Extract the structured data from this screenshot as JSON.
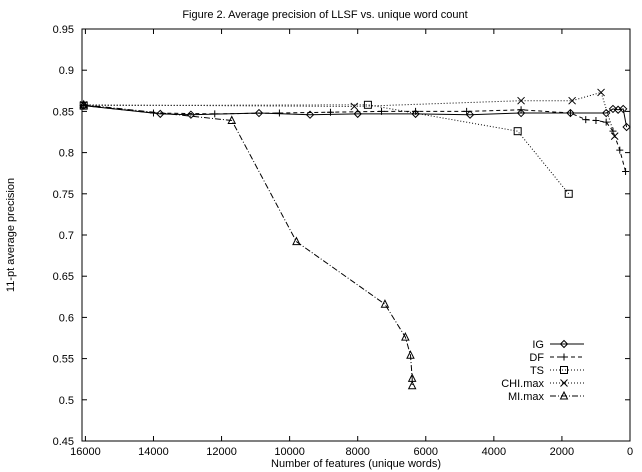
{
  "chart_data": {
    "type": "line",
    "title": "Figure 2. Average precision of LLSF vs. unique word count",
    "xlabel": "Number of features (unique words)",
    "ylabel": "11-pt average precision",
    "xlim": [
      16100,
      0
    ],
    "ylim": [
      0.45,
      0.95
    ],
    "x_reversed": true,
    "xticks": [
      16000,
      14000,
      12000,
      10000,
      8000,
      6000,
      4000,
      2000,
      0
    ],
    "yticks": [
      0.45,
      0.5,
      0.55,
      0.6,
      0.65,
      0.7,
      0.75,
      0.8,
      0.85,
      0.9,
      0.95
    ],
    "xtick_labels": [
      "16000",
      "14000",
      "12000",
      "10000",
      "8000",
      "6000",
      "4000",
      "2000",
      "0"
    ],
    "ytick_labels": [
      "0.45",
      "0.5",
      "0.55",
      "0.6",
      "0.65",
      "0.7",
      "0.75",
      "0.8",
      "0.85",
      "0.9",
      "0.95"
    ],
    "grid": false,
    "legend_position": "bottom-right",
    "series": [
      {
        "name": "IG",
        "marker": "diamond",
        "line": "solid",
        "points": [
          [
            16050,
            0.857
          ],
          [
            13800,
            0.847
          ],
          [
            12900,
            0.846
          ],
          [
            10900,
            0.848
          ],
          [
            9400,
            0.846
          ],
          [
            8000,
            0.847
          ],
          [
            6300,
            0.847
          ],
          [
            4700,
            0.846
          ],
          [
            3200,
            0.848
          ],
          [
            1750,
            0.848
          ],
          [
            700,
            0.848
          ],
          [
            500,
            0.853
          ],
          [
            350,
            0.852
          ],
          [
            200,
            0.853
          ],
          [
            100,
            0.831
          ]
        ]
      },
      {
        "name": "DF",
        "marker": "plus",
        "line": "dashed",
        "points": [
          [
            16050,
            0.857
          ],
          [
            14000,
            0.848
          ],
          [
            12200,
            0.847
          ],
          [
            10300,
            0.848
          ],
          [
            8800,
            0.849
          ],
          [
            7300,
            0.85
          ],
          [
            6300,
            0.85
          ],
          [
            4800,
            0.85
          ],
          [
            3200,
            0.852
          ],
          [
            1750,
            0.848
          ],
          [
            1300,
            0.84
          ],
          [
            1000,
            0.839
          ],
          [
            700,
            0.837
          ],
          [
            500,
            0.826
          ],
          [
            300,
            0.803
          ],
          [
            130,
            0.777
          ]
        ]
      },
      {
        "name": "TS",
        "marker": "square",
        "line": "dotted",
        "points": [
          [
            16050,
            0.857
          ],
          [
            7700,
            0.858
          ],
          [
            3300,
            0.826
          ],
          [
            1800,
            0.75
          ]
        ]
      },
      {
        "name": "CHI.max",
        "marker": "x",
        "line": "dotted",
        "points": [
          [
            16050,
            0.858
          ],
          [
            8100,
            0.856
          ],
          [
            3200,
            0.863
          ],
          [
            1700,
            0.863
          ],
          [
            850,
            0.873
          ],
          [
            450,
            0.82
          ]
        ]
      },
      {
        "name": "MI.max",
        "marker": "triangle",
        "line": "dashdot",
        "points": [
          [
            16050,
            0.858
          ],
          [
            11700,
            0.839
          ],
          [
            9800,
            0.692
          ],
          [
            7200,
            0.616
          ],
          [
            6600,
            0.576
          ],
          [
            6450,
            0.554
          ],
          [
            6400,
            0.526
          ],
          [
            6400,
            0.517
          ]
        ]
      }
    ]
  }
}
